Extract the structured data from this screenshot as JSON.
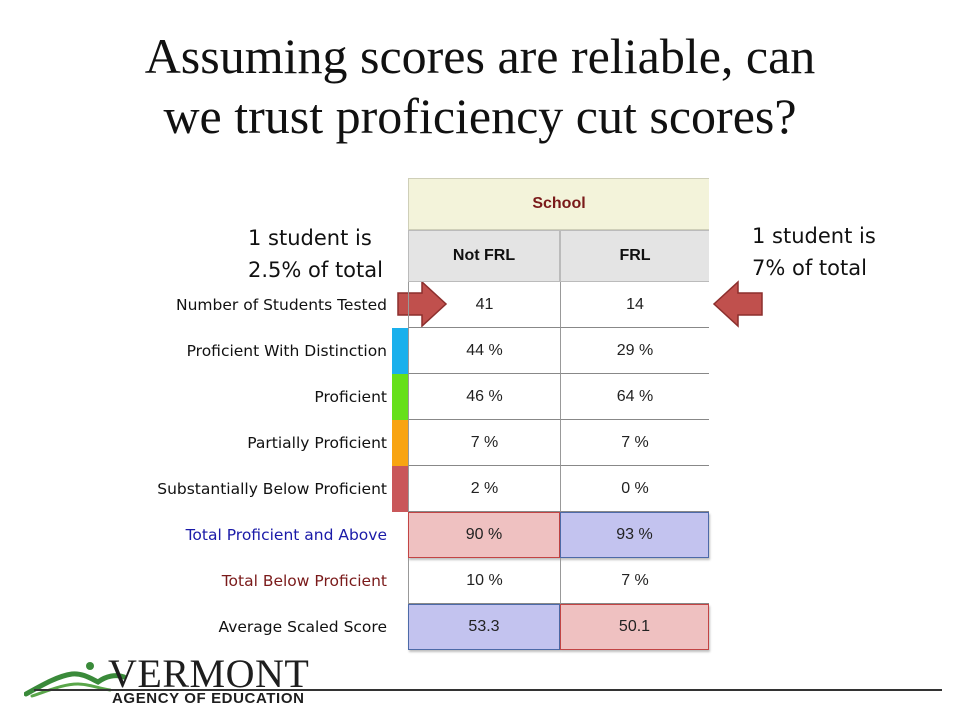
{
  "slide": {
    "title_line1": "Assuming scores are reliable, can",
    "title_line2": "we trust proficiency cut scores?"
  },
  "notes": {
    "left_line1": "1 student is",
    "left_line2": "2.5% of total",
    "right_line1": "1 student is",
    "right_line2": "7% of total"
  },
  "table": {
    "group_header": "School",
    "columns": [
      "Not FRL",
      "FRL"
    ],
    "rows": [
      {
        "label": "Number of Students Tested",
        "values": [
          "41",
          "14"
        ],
        "label_color": "#111111",
        "swatch": ""
      },
      {
        "label": "Proficient With Distinction",
        "values": [
          "44 %",
          "29 %"
        ],
        "label_color": "#111111",
        "swatch": "#1ab0ec"
      },
      {
        "label": "Proficient",
        "values": [
          "46 %",
          "64 %"
        ],
        "label_color": "#111111",
        "swatch": "#66e01a"
      },
      {
        "label": "Partially Proficient",
        "values": [
          "7 %",
          "7 %"
        ],
        "label_color": "#111111",
        "swatch": "#f8a412"
      },
      {
        "label": "Substantially Below Proficient",
        "values": [
          "2 %",
          "0 %"
        ],
        "label_color": "#111111",
        "swatch": "#c9575a"
      },
      {
        "label": "Total Proficient and Above",
        "values": [
          "90 %",
          "93 %"
        ],
        "label_color": "#1a1aa8",
        "swatch": ""
      },
      {
        "label": "Total Below Proficient",
        "values": [
          "10 %",
          "7 %"
        ],
        "label_color": "#7a1a1a",
        "swatch": ""
      },
      {
        "label": "Average Scaled Score",
        "values": [
          "53.3",
          "50.1"
        ],
        "label_color": "#111111",
        "swatch": ""
      }
    ]
  },
  "colors": {
    "arrow_fill": "#c0504d",
    "highlight_red": "#efc1c1",
    "highlight_blue": "#c3c3ef",
    "logo_green": "#3a8a3a"
  },
  "logo": {
    "word": "VERMONT",
    "subtitle": "AGENCY OF EDUCATION",
    "icon": "mountain-logo-icon"
  }
}
